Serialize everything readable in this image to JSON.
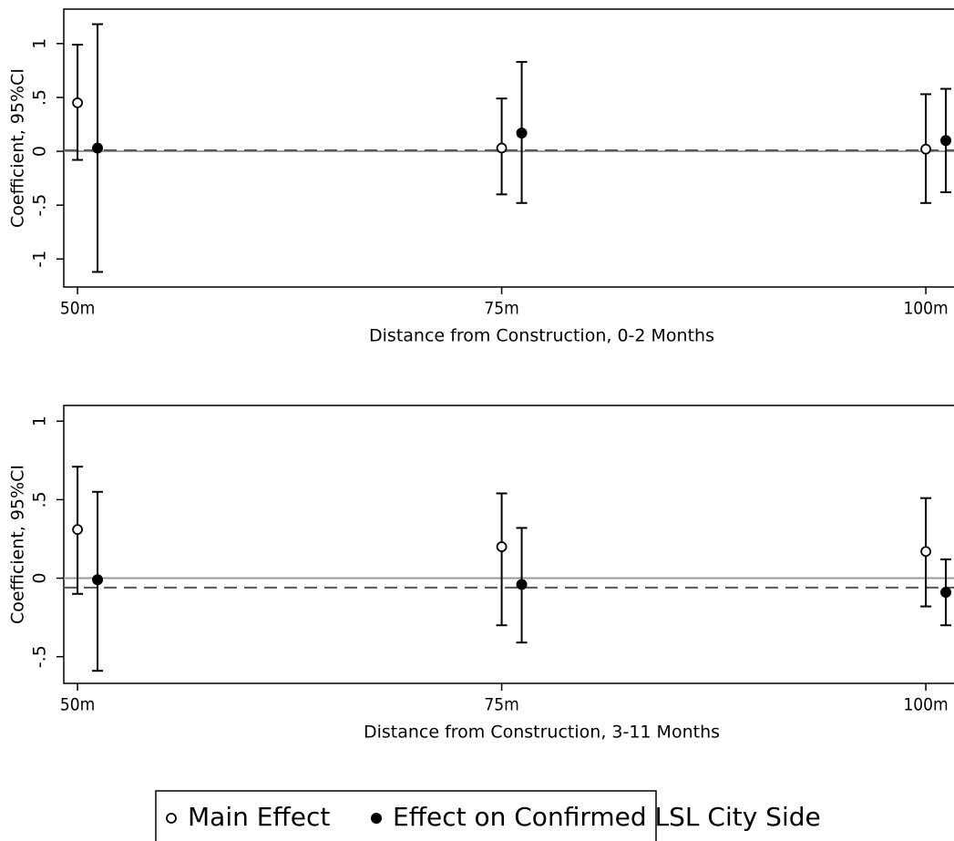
{
  "chart_data": [
    {
      "type": "errorbar",
      "y_label": "Coefficient, 95%CI",
      "x_label": "Distance from Construction, 0-2 Months",
      "xlim": [
        49.19,
        101.66
      ],
      "xticks": [
        {
          "value": 50,
          "label": "50m"
        },
        {
          "value": 75,
          "label": "75m"
        },
        {
          "value": 100,
          "label": "100m"
        }
      ],
      "ylim": [
        -1.26,
        1.32
      ],
      "yticks": [
        1,
        {
          "value": 0.5,
          "label": ".5"
        },
        0,
        {
          "value": -0.5,
          "label": "-.5"
        },
        -1
      ],
      "zero_line": 0,
      "dashed_line": 0.01,
      "series": [
        {
          "name": "Main Effect",
          "marker": "open",
          "color": "#000000",
          "x": [
            50,
            75,
            100
          ],
          "values": [
            0.45,
            0.03,
            0.02
          ],
          "lower": [
            -0.08,
            -0.4,
            -0.48
          ],
          "upper": [
            0.99,
            0.49,
            0.53
          ]
        },
        {
          "name": "Effect on Confirmed LSL City Side",
          "marker": "filled",
          "color": "#000000",
          "x": [
            51.18,
            76.18,
            101.18
          ],
          "values": [
            0.03,
            0.17,
            0.1
          ],
          "lower": [
            -1.12,
            -0.48,
            -0.38
          ],
          "upper": [
            1.18,
            0.83,
            0.58
          ]
        }
      ]
    },
    {
      "type": "errorbar",
      "y_label": "Coefficient, 95%CI",
      "x_label": "Distance from Construction, 3-11 Months",
      "xlim": [
        49.19,
        101.66
      ],
      "xticks": [
        {
          "value": 50,
          "label": "50m"
        },
        {
          "value": 75,
          "label": "75m"
        },
        {
          "value": 100,
          "label": "100m"
        }
      ],
      "ylim": [
        -0.67,
        1.1
      ],
      "yticks": [
        1,
        {
          "value": 0.5,
          "label": ".5"
        },
        0,
        {
          "value": -0.5,
          "label": "-.5"
        }
      ],
      "zero_line": 0,
      "dashed_line": -0.06,
      "series": [
        {
          "marker": "open",
          "color": "#000000",
          "x": [
            50,
            75,
            100
          ],
          "values": [
            0.31,
            0.2,
            0.17
          ],
          "lower": [
            -0.1,
            -0.3,
            -0.18
          ],
          "upper": [
            0.71,
            0.54,
            0.51
          ]
        },
        {
          "marker": "filled",
          "color": "#000000",
          "x": [
            51.18,
            76.18,
            101.18
          ],
          "values": [
            -0.01,
            -0.04,
            -0.09
          ],
          "lower": [
            -0.59,
            -0.41,
            -0.3
          ],
          "upper": [
            0.55,
            0.32,
            0.12
          ]
        }
      ]
    }
  ]
}
